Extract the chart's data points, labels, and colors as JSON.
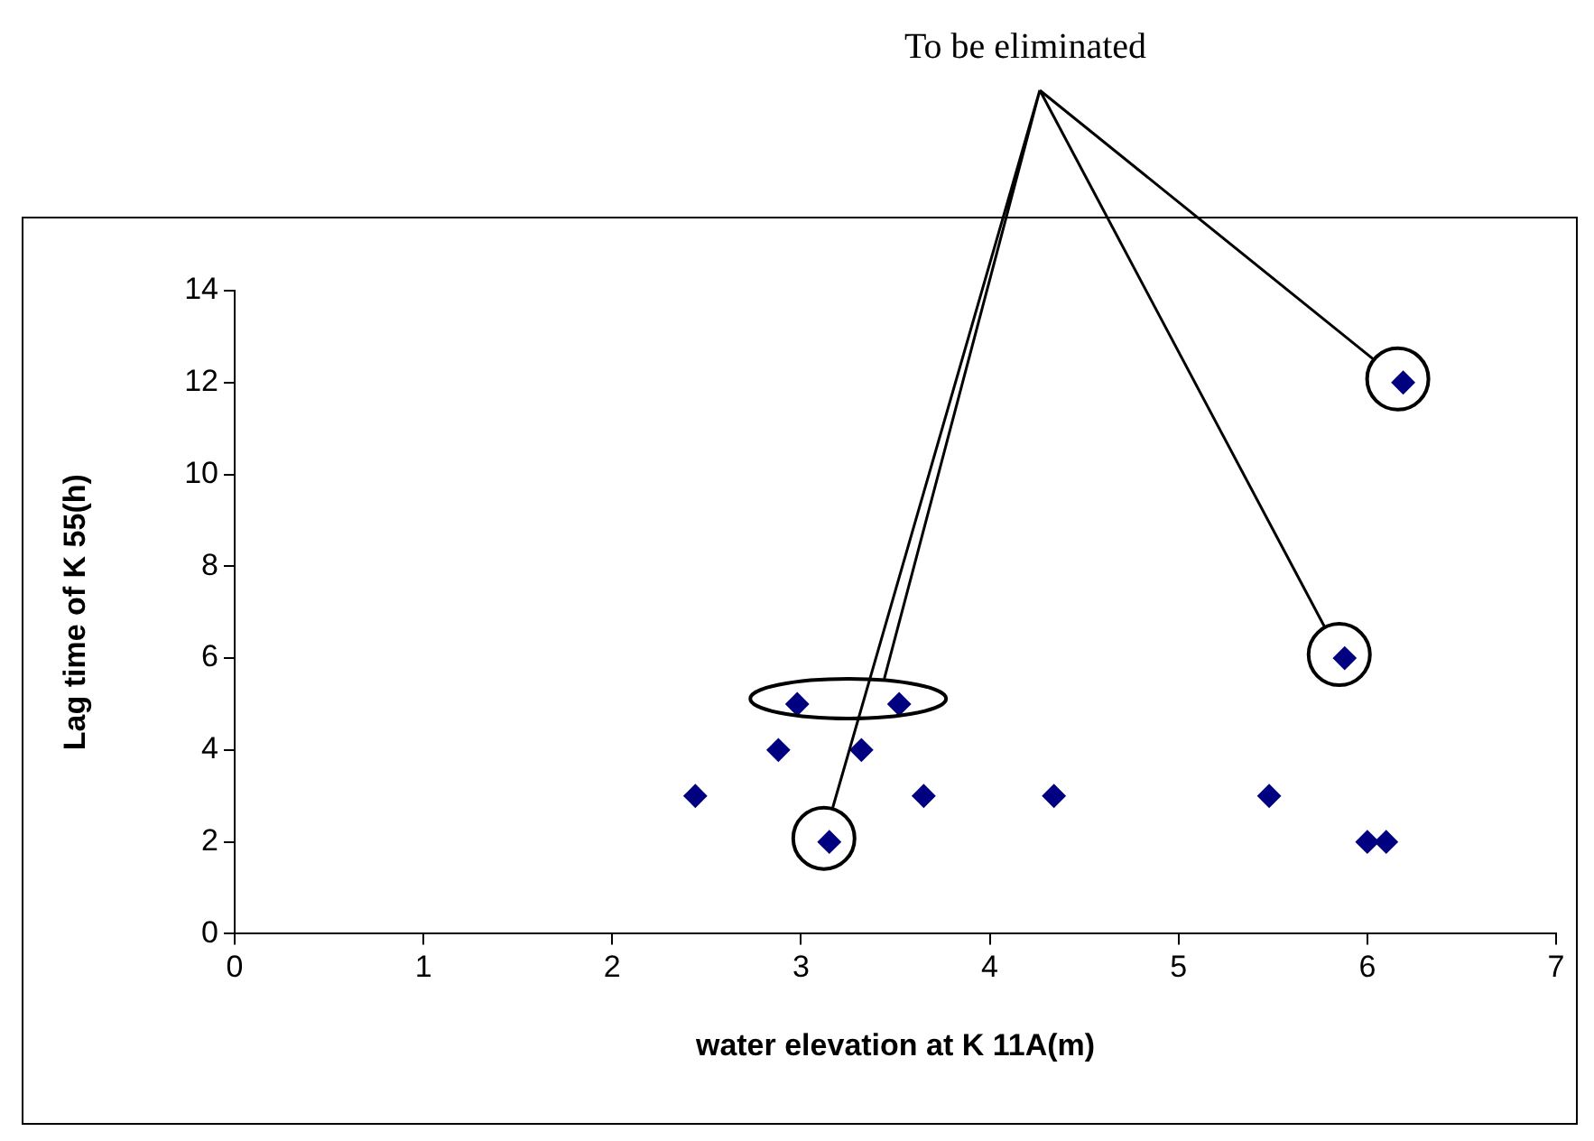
{
  "chart_data": {
    "type": "scatter",
    "xlabel": "water elevation at K 11A(m)",
    "ylabel": "Lag time of K 55(h)",
    "annotations": [
      "To be eliminated"
    ],
    "series": [
      {
        "color": "#000080",
        "x": [
          2.44,
          2.88,
          2.98,
          3.15,
          3.32,
          3.52,
          3.65,
          4.34,
          5.48,
          5.88,
          6.0,
          6.1,
          6.19
        ],
        "values": [
          3,
          4,
          5,
          2,
          4,
          5,
          3,
          3,
          3,
          6,
          2,
          2,
          12
        ]
      }
    ],
    "xlim": [
      0,
      7
    ],
    "xticks": [
      0,
      1,
      2,
      3,
      4,
      5,
      6,
      7
    ],
    "ylim": [
      0,
      14
    ],
    "yticks": [
      0,
      2,
      4,
      6,
      8,
      10,
      12,
      14
    ],
    "grid": false,
    "legend": false,
    "marker": "diamond"
  }
}
